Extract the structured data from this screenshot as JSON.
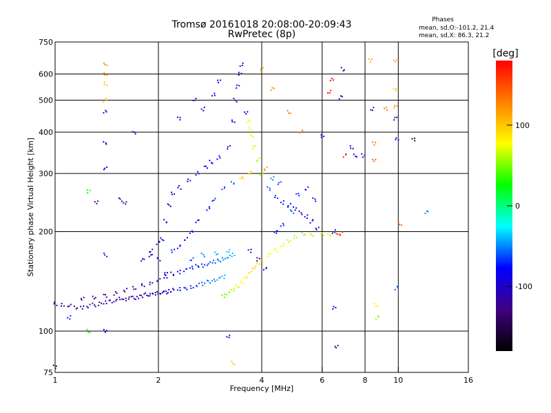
{
  "chart_data": {
    "type": "scatter",
    "title": "Tromsø 20161018 20:08:00-20:09:43",
    "subtitle": "RwPretec (8p)",
    "xlabel": "Frequency [MHz]",
    "ylabel": "Stationary phase Virtual Height [km]",
    "x_scale": "log",
    "y_scale": "log",
    "xlim": [
      1,
      16
    ],
    "ylim": [
      75,
      750
    ],
    "x_ticks": [
      1,
      2,
      4,
      6,
      8,
      10,
      16
    ],
    "x_tick_labels": [
      "1",
      "2",
      "4",
      "6",
      "8",
      "10",
      "16"
    ],
    "x_vgrid": [
      1,
      2,
      4,
      6,
      8,
      10
    ],
    "y_ticks": [
      75,
      100,
      200,
      300,
      400,
      500,
      600,
      750
    ],
    "y_tick_labels": [
      "75",
      "100",
      "200",
      "300",
      "400",
      "500",
      "600",
      "750"
    ],
    "y_hgrid": [
      100,
      200,
      300,
      400,
      500,
      600
    ],
    "grid": true,
    "stats": {
      "heading": "Phases",
      "line_o": "mean, sd,O:-101.2, 21.4",
      "line_x": "mean, sd,X:  86.3, 21.2"
    },
    "colorbar": {
      "label": "[deg]",
      "range": [
        -180,
        180
      ],
      "ticks": [
        100,
        0,
        -100
      ],
      "tick_labels": [
        "100",
        "0",
        "-100"
      ],
      "colors": [
        "#ff0000",
        "#ff8000",
        "#ffff00",
        "#00ff00",
        "#00ffff",
        "#0000ff",
        "#400080",
        "#000000"
      ]
    },
    "series": [
      {
        "trace": "low-trace",
        "points": [
          [
            1.0,
            121,
            -110
          ],
          [
            1.05,
            120,
            -115
          ],
          [
            1.1,
            119,
            -118
          ],
          [
            1.15,
            118,
            -115
          ],
          [
            1.2,
            118,
            -120
          ],
          [
            1.25,
            119,
            -112
          ],
          [
            1.3,
            120,
            -118
          ],
          [
            1.35,
            121,
            -115
          ],
          [
            1.4,
            122,
            -120
          ],
          [
            1.45,
            123,
            -112
          ],
          [
            1.5,
            124,
            -118
          ],
          [
            1.55,
            125,
            -115
          ],
          [
            1.6,
            125,
            -110
          ],
          [
            1.65,
            126,
            -118
          ],
          [
            1.7,
            126,
            -112
          ],
          [
            1.75,
            127,
            -115
          ],
          [
            1.8,
            128,
            -110
          ],
          [
            1.85,
            129,
            -112
          ],
          [
            1.9,
            129,
            -108
          ],
          [
            1.95,
            130,
            -110
          ],
          [
            2.0,
            130,
            -105
          ],
          [
            2.05,
            131,
            -100
          ],
          [
            2.1,
            131,
            -95
          ],
          [
            2.15,
            132,
            -90
          ],
          [
            2.2,
            133,
            -85
          ],
          [
            2.3,
            134,
            -80
          ],
          [
            2.4,
            135,
            -75
          ],
          [
            2.5,
            136,
            -70
          ],
          [
            2.6,
            138,
            -65
          ],
          [
            2.7,
            139,
            -60
          ],
          [
            2.8,
            141,
            -55
          ],
          [
            2.9,
            142,
            -50
          ],
          [
            3.0,
            144,
            -45
          ],
          [
            3.1,
            146,
            -40
          ]
        ]
      },
      {
        "trace": "upper-trace",
        "points": [
          [
            1.2,
            125,
            -125
          ],
          [
            1.3,
            126,
            -120
          ],
          [
            1.4,
            128,
            -118
          ],
          [
            1.5,
            130,
            -115
          ],
          [
            1.6,
            133,
            -112
          ],
          [
            1.7,
            135,
            -110
          ],
          [
            1.8,
            138,
            -108
          ],
          [
            1.9,
            140,
            -105
          ],
          [
            2.0,
            143,
            -102
          ],
          [
            2.1,
            146,
            -98
          ],
          [
            2.2,
            149,
            -95
          ],
          [
            2.3,
            151,
            -90
          ],
          [
            2.4,
            153,
            -85
          ],
          [
            2.5,
            155,
            -80
          ],
          [
            2.6,
            157,
            -75
          ],
          [
            2.7,
            158,
            -70
          ],
          [
            2.8,
            160,
            -65
          ],
          [
            2.9,
            162,
            -60
          ],
          [
            3.0,
            164,
            -55
          ],
          [
            3.1,
            166,
            -50
          ],
          [
            3.2,
            168,
            -45
          ],
          [
            3.3,
            170,
            -40
          ]
        ]
      },
      {
        "trace": "cusp-trace",
        "points": [
          [
            3.1,
            128,
            40
          ],
          [
            3.2,
            130,
            50
          ],
          [
            3.3,
            133,
            60
          ],
          [
            3.4,
            136,
            70
          ],
          [
            3.5,
            140,
            80
          ],
          [
            3.6,
            145,
            85
          ],
          [
            3.7,
            150,
            90
          ],
          [
            3.8,
            155,
            95
          ],
          [
            3.9,
            160,
            90
          ],
          [
            4.0,
            164,
            85
          ],
          [
            4.2,
            170,
            80
          ],
          [
            4.4,
            176,
            75
          ],
          [
            4.6,
            182,
            70
          ],
          [
            4.8,
            188,
            65
          ],
          [
            5.0,
            193,
            60
          ],
          [
            5.3,
            196,
            55
          ],
          [
            5.6,
            196,
            60
          ],
          [
            6.0,
            196,
            65
          ],
          [
            6.3,
            196,
            70
          ],
          [
            6.6,
            197,
            150
          ],
          [
            6.8,
            197,
            160
          ]
        ]
      },
      {
        "trace": "f2-trace",
        "points": [
          [
            2.0,
            165,
            -90
          ],
          [
            2.05,
            190,
            -95
          ],
          [
            2.1,
            215,
            -100
          ],
          [
            2.15,
            240,
            -105
          ],
          [
            2.2,
            260,
            -100
          ],
          [
            2.3,
            272,
            -95
          ],
          [
            2.45,
            285,
            -90
          ],
          [
            2.6,
            300,
            -85
          ],
          [
            2.75,
            315,
            -88
          ],
          [
            2.85,
            325,
            -85
          ],
          [
            3.0,
            335,
            -80
          ],
          [
            3.2,
            360,
            -82
          ],
          [
            3.3,
            430,
            -88
          ],
          [
            3.35,
            500,
            -90
          ],
          [
            3.4,
            550,
            -95
          ],
          [
            3.45,
            600,
            -92
          ],
          [
            3.5,
            640,
            -95
          ],
          [
            3.6,
            460,
            -90
          ],
          [
            3.65,
            430,
            80
          ],
          [
            3.7,
            410,
            75
          ],
          [
            3.75,
            390,
            70
          ],
          [
            3.8,
            360,
            65
          ],
          [
            3.9,
            330,
            60
          ],
          [
            4.0,
            300,
            55
          ],
          [
            4.2,
            270,
            -60
          ],
          [
            4.4,
            255,
            -70
          ],
          [
            4.6,
            245,
            -75
          ],
          [
            4.8,
            240,
            -80
          ],
          [
            5.0,
            235,
            -90
          ],
          [
            5.2,
            228,
            -95
          ],
          [
            5.4,
            222,
            -100
          ],
          [
            5.6,
            215,
            -105
          ],
          [
            5.8,
            205,
            -110
          ]
        ]
      },
      {
        "trace": "scattered-points",
        "points": [
          [
            1.4,
            640,
            120
          ],
          [
            1.4,
            600,
            110
          ],
          [
            1.4,
            560,
            100
          ],
          [
            1.4,
            500,
            105
          ],
          [
            1.4,
            460,
            -100
          ],
          [
            1.4,
            370,
            -85
          ],
          [
            1.4,
            310,
            -90
          ],
          [
            1.4,
            170,
            -70
          ],
          [
            1.4,
            100,
            -80
          ],
          [
            1.32,
            245,
            -120
          ],
          [
            1.55,
            250,
            -110
          ],
          [
            1.6,
            245,
            -120
          ],
          [
            1.7,
            400,
            -100
          ],
          [
            1.9,
            170,
            -100
          ],
          [
            2.1,
            150,
            -95
          ],
          [
            2.3,
            440,
            -100
          ],
          [
            2.55,
            500,
            -95
          ],
          [
            2.7,
            470,
            -90
          ],
          [
            2.9,
            520,
            -80
          ],
          [
            3.0,
            570,
            -90
          ],
          [
            3.2,
            96,
            -80
          ],
          [
            3.3,
            80,
            100
          ],
          [
            4.0,
            620,
            110
          ],
          [
            4.3,
            540,
            120
          ],
          [
            4.8,
            460,
            130
          ],
          [
            5.2,
            400,
            150
          ],
          [
            6.0,
            390,
            -95
          ],
          [
            6.3,
            530,
            170
          ],
          [
            6.4,
            575,
            175
          ],
          [
            6.5,
            200,
            -90
          ],
          [
            6.5,
            118,
            -85
          ],
          [
            6.6,
            90,
            -110
          ],
          [
            6.8,
            510,
            -100
          ],
          [
            6.9,
            620,
            -120
          ],
          [
            7.0,
            340,
            170
          ],
          [
            7.3,
            360,
            -80
          ],
          [
            7.5,
            340,
            -90
          ],
          [
            7.9,
            340,
            -95
          ],
          [
            8.3,
            660,
            110
          ],
          [
            8.4,
            470,
            -110
          ],
          [
            8.5,
            370,
            130
          ],
          [
            8.5,
            330,
            140
          ],
          [
            8.6,
            120,
            80
          ],
          [
            8.7,
            110,
            50
          ],
          [
            9.2,
            470,
            130
          ],
          [
            9.8,
            660,
            110
          ],
          [
            9.8,
            540,
            100
          ],
          [
            9.8,
            480,
            120
          ],
          [
            9.8,
            440,
            -110
          ],
          [
            9.9,
            380,
            -90
          ],
          [
            9.9,
            135,
            -60
          ],
          [
            10.1,
            210,
            140
          ],
          [
            11.1,
            380,
            -160
          ],
          [
            12.1,
            230,
            -50
          ],
          [
            1.25,
            265,
            20
          ],
          [
            1.25,
            100,
            30
          ],
          [
            1.1,
            110,
            -70
          ],
          [
            1.0,
            78,
            -150
          ],
          [
            3.7,
            175,
            -100
          ],
          [
            3.9,
            165,
            -110
          ],
          [
            4.1,
            155,
            -95
          ],
          [
            4.4,
            200,
            -80
          ],
          [
            4.6,
            210,
            -70
          ],
          [
            4.9,
            230,
            -60
          ],
          [
            5.1,
            260,
            -70
          ],
          [
            5.4,
            270,
            -80
          ],
          [
            5.7,
            250,
            -100
          ],
          [
            2.8,
            235,
            -95
          ],
          [
            2.6,
            215,
            -90
          ],
          [
            2.5,
            200,
            -85
          ],
          [
            2.4,
            190,
            -80
          ],
          [
            2.3,
            180,
            -75
          ],
          [
            2.9,
            250,
            -70
          ],
          [
            3.1,
            270,
            -60
          ],
          [
            3.3,
            280,
            -55
          ],
          [
            3.5,
            290,
            100
          ],
          [
            3.7,
            300,
            110
          ],
          [
            4.1,
            310,
            120
          ],
          [
            4.3,
            290,
            -50
          ],
          [
            4.5,
            280,
            -60
          ],
          [
            2.2,
            175,
            -70
          ],
          [
            2.5,
            165,
            -60
          ],
          [
            2.7,
            170,
            -50
          ],
          [
            2.95,
            172,
            -40
          ],
          [
            3.2,
            175,
            -35
          ],
          [
            1.8,
            165,
            -110
          ],
          [
            1.9,
            175,
            -120
          ],
          [
            2.0,
            185,
            -115
          ]
        ]
      }
    ]
  }
}
